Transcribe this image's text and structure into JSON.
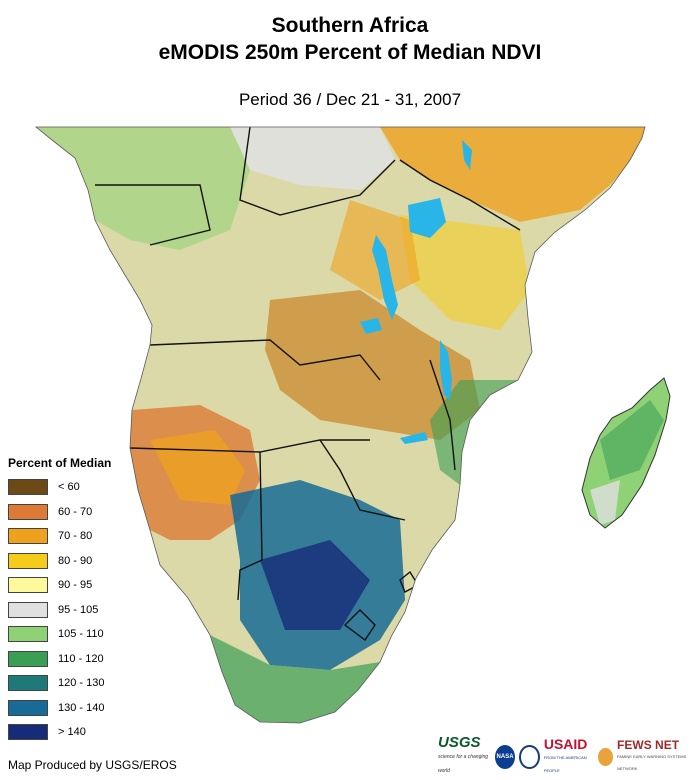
{
  "title_line1": "Southern Africa",
  "title_line2": "eMODIS 250m Percent of Median NDVI",
  "subtitle": "Period 36 / Dec 21 - 31, 2007",
  "legend": {
    "title": "Percent of Median",
    "items": [
      {
        "label": "< 60",
        "color": "#6b4a16"
      },
      {
        "label": "60 - 70",
        "color": "#dc7a36"
      },
      {
        "label": "70 - 80",
        "color": "#eda11f"
      },
      {
        "label": "80 - 90",
        "color": "#f5cc1a"
      },
      {
        "label": "90 - 95",
        "color": "#fcfa9a"
      },
      {
        "label": "95 - 105",
        "color": "#e0e0e0"
      },
      {
        "label": "105 - 110",
        "color": "#8fd175"
      },
      {
        "label": "110 - 120",
        "color": "#3b9e55"
      },
      {
        "label": "120 - 130",
        "color": "#1d7a78"
      },
      {
        "label": "130 - 140",
        "color": "#176b96"
      },
      {
        "label": "> 140",
        "color": "#162c78"
      }
    ]
  },
  "credit": "Map Produced by USGS/EROS",
  "logos": {
    "usgs": "USGS",
    "usgs_tagline": "science for a changing world",
    "nasa": "NASA",
    "usaid": "USAID",
    "usaid_tagline": "FROM THE AMERICAN PEOPLE",
    "fews": "FEWS NET",
    "fews_tagline": "FAMINE EARLY WARNING SYSTEMS NETWORK"
  }
}
